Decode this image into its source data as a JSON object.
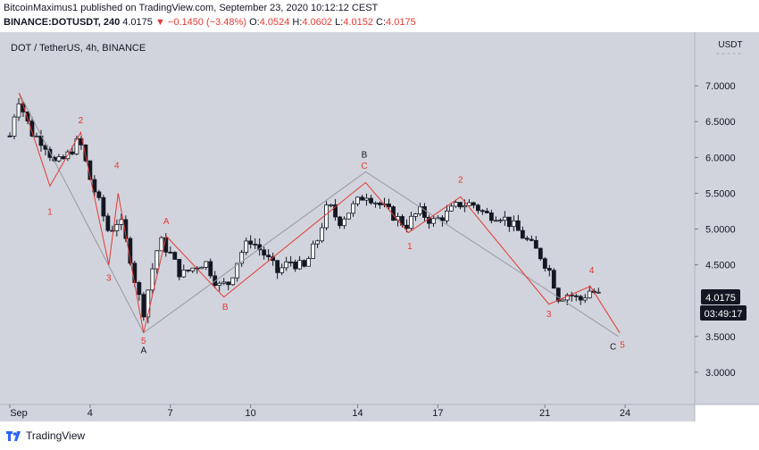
{
  "header": {
    "line1": "BitcoinMaximus1 published on TradingView.com, September 23, 2020 10:12:12 CEST",
    "symbol": "BINANCE:DOTUSDT, 240",
    "last": "4.0175",
    "arrow": "▼",
    "change": "−0.1450 (−3.48%)",
    "o_label": "O:",
    "o": "4.0524",
    "h_label": "H:",
    "h": "4.0602",
    "l_label": "L:",
    "l": "4.0152",
    "c_label": "C:",
    "c": "4.0175"
  },
  "chart_title": "DOT / TetherUS, 4h, BINANCE",
  "currency": "USDT",
  "price_badge": "4.0175",
  "countdown_badge": "03:49:17",
  "footer_brand": "TradingView",
  "colors": {
    "panel": "#d1d4dc",
    "up": "#ffffff",
    "down": "#131722",
    "wave_red": "#e53935",
    "wave_grey": "#9598a1",
    "badge": "#131722"
  },
  "chart_data": {
    "type": "candlestick",
    "y_ticks": [
      "7.0000",
      "6.5000",
      "6.0000",
      "5.5000",
      "5.0000",
      "4.5000",
      "3.5000",
      "3.0000"
    ],
    "ylim": [
      2.55,
      7.75
    ],
    "x_ticks": [
      {
        "label": "Sep",
        "x": 0
      },
      {
        "label": "4",
        "x": 3
      },
      {
        "label": "7",
        "x": 6
      },
      {
        "label": "10",
        "x": 9
      },
      {
        "label": "14",
        "x": 13
      },
      {
        "label": "17",
        "x": 16
      },
      {
        "label": "21",
        "x": 20
      },
      {
        "label": "24",
        "x": 23
      }
    ],
    "xlim": [
      -0.2,
      24.5
    ],
    "approx_closes": [
      {
        "x": 0,
        "y": 6.3
      },
      {
        "x": 0.3,
        "y": 6.85
      },
      {
        "x": 0.8,
        "y": 6.35
      },
      {
        "x": 1.3,
        "y": 6.2
      },
      {
        "x": 1.7,
        "y": 5.9
      },
      {
        "x": 2.1,
        "y": 6.0
      },
      {
        "x": 2.6,
        "y": 6.25
      },
      {
        "x": 3.0,
        "y": 5.7
      },
      {
        "x": 3.4,
        "y": 5.3
      },
      {
        "x": 3.7,
        "y": 4.95
      },
      {
        "x": 4.1,
        "y": 5.15
      },
      {
        "x": 4.5,
        "y": 4.6
      },
      {
        "x": 4.75,
        "y": 4.15
      },
      {
        "x": 5.0,
        "y": 3.85
      },
      {
        "x": 5.3,
        "y": 4.4
      },
      {
        "x": 5.6,
        "y": 4.85
      },
      {
        "x": 6.0,
        "y": 4.65
      },
      {
        "x": 6.4,
        "y": 4.35
      },
      {
        "x": 6.8,
        "y": 4.45
      },
      {
        "x": 7.3,
        "y": 4.55
      },
      {
        "x": 7.8,
        "y": 4.2
      },
      {
        "x": 8.2,
        "y": 4.25
      },
      {
        "x": 8.6,
        "y": 4.65
      },
      {
        "x": 9.0,
        "y": 4.85
      },
      {
        "x": 9.5,
        "y": 4.65
      },
      {
        "x": 10.0,
        "y": 4.4
      },
      {
        "x": 10.5,
        "y": 4.55
      },
      {
        "x": 11.0,
        "y": 4.45
      },
      {
        "x": 11.5,
        "y": 4.85
      },
      {
        "x": 11.9,
        "y": 5.35
      },
      {
        "x": 12.3,
        "y": 5.1
      },
      {
        "x": 12.8,
        "y": 5.3
      },
      {
        "x": 13.3,
        "y": 5.5
      },
      {
        "x": 13.8,
        "y": 5.35
      },
      {
        "x": 14.3,
        "y": 5.2
      },
      {
        "x": 14.8,
        "y": 5.05
      },
      {
        "x": 15.3,
        "y": 5.25
      },
      {
        "x": 15.8,
        "y": 5.1
      },
      {
        "x": 16.3,
        "y": 5.2
      },
      {
        "x": 16.8,
        "y": 5.35
      },
      {
        "x": 17.3,
        "y": 5.35
      },
      {
        "x": 17.8,
        "y": 5.2
      },
      {
        "x": 18.3,
        "y": 5.2
      },
      {
        "x": 18.8,
        "y": 5.05
      },
      {
        "x": 19.3,
        "y": 4.85
      },
      {
        "x": 19.8,
        "y": 4.65
      },
      {
        "x": 20.2,
        "y": 4.4
      },
      {
        "x": 20.5,
        "y": 4.05
      },
      {
        "x": 20.9,
        "y": 4.1
      },
      {
        "x": 21.3,
        "y": 4.0
      },
      {
        "x": 21.7,
        "y": 4.15
      },
      {
        "x": 22.1,
        "y": 4.05
      }
    ],
    "wave_labels": [
      {
        "text": "1",
        "x": 1.5,
        "y": 5.2,
        "color": "red"
      },
      {
        "text": "2",
        "x": 2.65,
        "y": 6.48,
        "color": "red"
      },
      {
        "text": "4",
        "x": 4.0,
        "y": 5.85,
        "color": "red"
      },
      {
        "text": "3",
        "x": 3.7,
        "y": 4.28,
        "color": "red"
      },
      {
        "text": "5",
        "x": 5.0,
        "y": 3.4,
        "color": "red"
      },
      {
        "text": "A",
        "x": 5.0,
        "y": 3.27,
        "color": "black"
      },
      {
        "text": "A",
        "x": 5.85,
        "y": 5.07,
        "color": "red"
      },
      {
        "text": "B",
        "x": 8.05,
        "y": 3.87,
        "color": "red"
      },
      {
        "text": "B",
        "x": 13.25,
        "y": 6.0,
        "color": "black"
      },
      {
        "text": "C",
        "x": 13.25,
        "y": 5.84,
        "color": "red"
      },
      {
        "text": "1",
        "x": 14.95,
        "y": 4.72,
        "color": "red"
      },
      {
        "text": "2",
        "x": 16.85,
        "y": 5.65,
        "color": "red"
      },
      {
        "text": "3",
        "x": 20.15,
        "y": 3.77,
        "color": "red"
      },
      {
        "text": "4",
        "x": 21.75,
        "y": 4.38,
        "color": "red"
      },
      {
        "text": "C",
        "x": 22.55,
        "y": 3.32,
        "color": "black"
      },
      {
        "text": "5",
        "x": 22.9,
        "y": 3.34,
        "color": "red"
      }
    ],
    "grey_path": [
      {
        "x": 0.35,
        "y": 6.9
      },
      {
        "x": 5.0,
        "y": 3.55
      },
      {
        "x": 13.3,
        "y": 5.8
      },
      {
        "x": 22.75,
        "y": 3.5
      }
    ],
    "red_path": [
      {
        "x": 0.35,
        "y": 6.9
      },
      {
        "x": 1.5,
        "y": 5.6
      },
      {
        "x": 2.65,
        "y": 6.35
      },
      {
        "x": 3.7,
        "y": 4.5
      },
      {
        "x": 4.05,
        "y": 5.5
      },
      {
        "x": 5.0,
        "y": 3.55
      },
      {
        "x": 5.85,
        "y": 4.9
      },
      {
        "x": 8.0,
        "y": 4.05
      },
      {
        "x": 13.3,
        "y": 5.65
      },
      {
        "x": 14.9,
        "y": 4.95
      },
      {
        "x": 16.85,
        "y": 5.45
      },
      {
        "x": 20.15,
        "y": 3.95
      },
      {
        "x": 21.7,
        "y": 4.2
      },
      {
        "x": 22.8,
        "y": 3.55
      }
    ],
    "grid": false,
    "legend": "none"
  }
}
